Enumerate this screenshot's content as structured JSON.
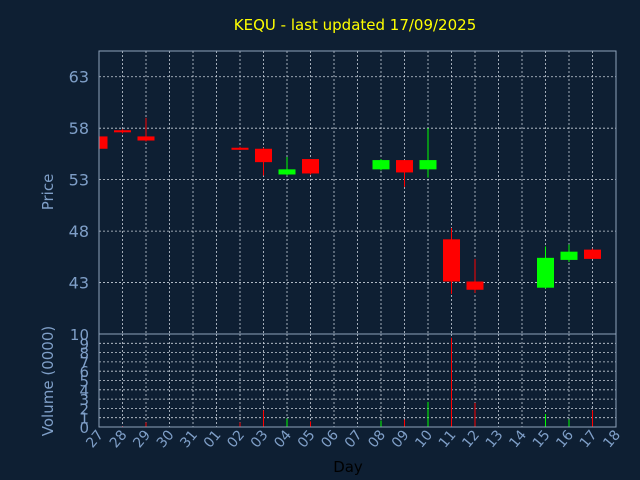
{
  "chart_data": {
    "type": "candlestick",
    "title": "KEQU - last updated 17/09/2025",
    "xlabel": "Day",
    "colors": {
      "background": "#0e1f33",
      "title": "#ffff00",
      "axis_text": "#7f9fc8",
      "frame": "#8fa3bb",
      "grid": "#c8d0da",
      "up": "#00ff00",
      "down": "#ff0000"
    },
    "x_ticks": [
      "27",
      "28",
      "29",
      "30",
      "31",
      "01",
      "02",
      "03",
      "04",
      "05",
      "06",
      "07",
      "08",
      "09",
      "10",
      "11",
      "12",
      "13",
      "14",
      "15",
      "16",
      "17",
      "18"
    ],
    "price_panel": {
      "ylabel": "Price",
      "ylim": [
        38,
        65.5
      ],
      "yticks": [
        43,
        48,
        53,
        58,
        63
      ],
      "grid": true
    },
    "volume_panel": {
      "ylabel": "Volume (0000)",
      "ylim": [
        0,
        10
      ],
      "yticks": [
        0,
        1,
        2,
        3,
        4,
        5,
        6,
        7,
        8,
        9,
        10
      ],
      "grid": true
    },
    "candles": [
      {
        "day": "27",
        "open": 57.2,
        "high": 57.2,
        "low": 55.9,
        "close": 56.0,
        "volume": 0.2
      },
      {
        "day": "28",
        "open": 57.8,
        "high": 57.9,
        "low": 57.5,
        "close": 57.6,
        "volume": 0.1
      },
      {
        "day": "29",
        "open": 57.2,
        "high": 59.0,
        "low": 56.7,
        "close": 56.8,
        "volume": 0.5
      },
      {
        "day": "02",
        "open": 56.1,
        "high": 56.2,
        "low": 55.9,
        "close": 55.9,
        "volume": 0.5
      },
      {
        "day": "03",
        "open": 56.0,
        "high": 56.1,
        "low": 53.4,
        "close": 54.7,
        "volume": 1.8
      },
      {
        "day": "04",
        "open": 53.5,
        "high": 55.2,
        "low": 53.4,
        "close": 54.0,
        "volume": 0.9
      },
      {
        "day": "05",
        "open": 55.0,
        "high": 55.0,
        "low": 53.5,
        "close": 53.6,
        "volume": 0.6
      },
      {
        "day": "08",
        "open": 54.0,
        "high": 55.0,
        "low": 53.9,
        "close": 54.9,
        "volume": 0.7
      },
      {
        "day": "09",
        "open": 54.9,
        "high": 54.9,
        "low": 52.3,
        "close": 53.7,
        "volume": 0.8
      },
      {
        "day": "10",
        "open": 54.0,
        "high": 58.0,
        "low": 53.2,
        "close": 54.9,
        "volume": 2.7
      },
      {
        "day": "11",
        "open": 47.2,
        "high": 48.3,
        "low": 41.9,
        "close": 43.1,
        "volume": 9.6
      },
      {
        "day": "12",
        "open": 43.1,
        "high": 45.3,
        "low": 42.0,
        "close": 42.3,
        "volume": 2.6
      },
      {
        "day": "15",
        "open": 42.5,
        "high": 46.5,
        "low": 42.4,
        "close": 45.4,
        "volume": 1.4
      },
      {
        "day": "16",
        "open": 45.2,
        "high": 46.7,
        "low": 45.0,
        "close": 46.0,
        "volume": 0.8
      },
      {
        "day": "17",
        "open": 46.2,
        "high": 46.3,
        "low": 45.3,
        "close": 45.3,
        "volume": 1.8
      }
    ]
  }
}
